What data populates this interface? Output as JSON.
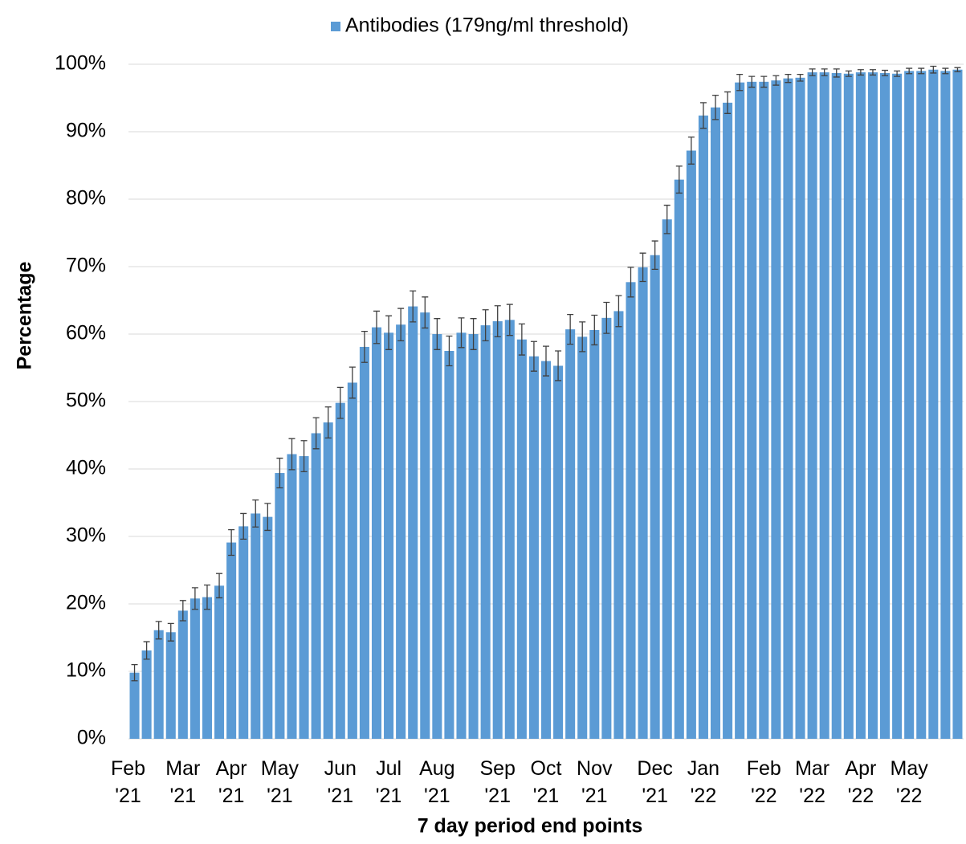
{
  "chart_data": {
    "type": "bar",
    "xlabel": "7 day period end points",
    "ylabel": "Percentage",
    "categories": [
      "Feb '21",
      null,
      null,
      null,
      "Mar '21",
      null,
      null,
      null,
      "Apr '21",
      null,
      null,
      null,
      "May '21",
      null,
      null,
      null,
      null,
      "Jun '21",
      null,
      null,
      null,
      "Jul '21",
      null,
      null,
      null,
      "Aug '21",
      null,
      null,
      null,
      null,
      "Sep '21",
      null,
      null,
      null,
      "Oct '21",
      null,
      null,
      null,
      "Nov '21",
      null,
      null,
      null,
      null,
      "Dec '21",
      null,
      null,
      null,
      "Jan '22",
      null,
      null,
      null,
      null,
      "Feb '22",
      null,
      null,
      null,
      "Mar '22",
      null,
      null,
      null,
      "Apr '22",
      null,
      null,
      null,
      "May '22",
      null,
      null,
      null,
      null
    ],
    "series": [
      {
        "name": "Antibodies (179ng/ml threshold)",
        "color": "#5b9bd5",
        "values": [
          9.8,
          13.1,
          16.1,
          15.8,
          19.0,
          20.8,
          21.0,
          22.7,
          29.1,
          31.5,
          33.4,
          32.9,
          39.4,
          42.2,
          41.9,
          45.3,
          46.9,
          49.8,
          52.8,
          58.1,
          61.0,
          60.2,
          61.4,
          64.1,
          63.2,
          60.0,
          57.5,
          60.2,
          60.0,
          61.3,
          61.9,
          62.1,
          59.2,
          56.7,
          56.0,
          55.3,
          60.7,
          59.6,
          60.6,
          62.4,
          63.4,
          67.7,
          69.9,
          71.7,
          77.0,
          82.9,
          87.2,
          92.4,
          93.6,
          94.3,
          97.3,
          97.4,
          97.4,
          97.6,
          97.9,
          98.0,
          98.8,
          98.8,
          98.7,
          98.6,
          98.8,
          98.8,
          98.7,
          98.6,
          99.0,
          99.0,
          99.2,
          99.0,
          99.2
        ],
        "errors": [
          1.2,
          1.3,
          1.3,
          1.3,
          1.5,
          1.6,
          1.8,
          1.8,
          1.9,
          1.9,
          2.0,
          2.0,
          2.2,
          2.3,
          2.3,
          2.3,
          2.3,
          2.3,
          2.3,
          2.3,
          2.4,
          2.5,
          2.4,
          2.3,
          2.3,
          2.3,
          2.2,
          2.2,
          2.3,
          2.3,
          2.3,
          2.3,
          2.3,
          2.2,
          2.2,
          2.2,
          2.2,
          2.2,
          2.2,
          2.3,
          2.3,
          2.2,
          2.1,
          2.1,
          2.1,
          2.0,
          2.0,
          1.9,
          1.8,
          1.6,
          1.2,
          0.8,
          0.8,
          0.7,
          0.6,
          0.5,
          0.5,
          0.5,
          0.6,
          0.4,
          0.4,
          0.4,
          0.4,
          0.4,
          0.4,
          0.4,
          0.5,
          0.4,
          0.3
        ]
      }
    ],
    "ylim": [
      0,
      100
    ],
    "yticks": [
      {
        "value": 0,
        "label": "0%"
      },
      {
        "value": 10,
        "label": "10%"
      },
      {
        "value": 20,
        "label": "20%"
      },
      {
        "value": 30,
        "label": "30%"
      },
      {
        "value": 40,
        "label": "40%"
      },
      {
        "value": 50,
        "label": "50%"
      },
      {
        "value": 60,
        "label": "60%"
      },
      {
        "value": 70,
        "label": "70%"
      },
      {
        "value": 80,
        "label": "80%"
      },
      {
        "value": 90,
        "label": "90%"
      },
      {
        "value": 100,
        "label": "100%"
      }
    ],
    "grid": true,
    "legend": "top",
    "error_color": "#404040"
  }
}
